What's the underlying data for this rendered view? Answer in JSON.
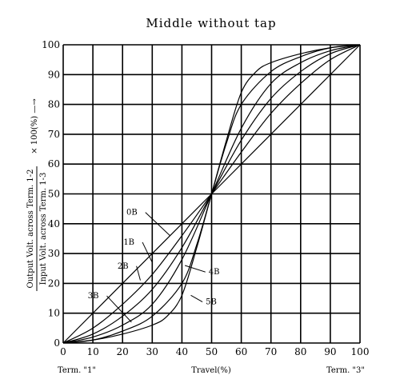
{
  "chart_data": {
    "type": "line",
    "title": "Middle without tap",
    "xlabel": "Travel(%)",
    "x_term_left": "Term. \"1\"",
    "x_term_right": "Term. \"3\"",
    "ylabel_line1": "Output Volt. across Term. 1-2",
    "ylabel_line2": "Input Volt. across Term. 1-3",
    "ylabel_suffix": "× 100(%) —→",
    "xlim": [
      0,
      100
    ],
    "ylim": [
      0,
      100
    ],
    "x_ticks": [
      0,
      10,
      20,
      30,
      40,
      50,
      60,
      70,
      80,
      90,
      100
    ],
    "y_ticks": [
      0,
      10,
      20,
      30,
      40,
      50,
      60,
      70,
      80,
      90,
      100
    ],
    "grid": true,
    "series": [
      {
        "name": "0B",
        "x": [
          0,
          50,
          100
        ],
        "y": [
          0,
          50,
          100
        ]
      },
      {
        "name": "1B",
        "x": [
          0,
          10,
          20,
          30,
          40,
          50,
          60,
          70,
          80,
          90,
          100
        ],
        "y": [
          0,
          5,
          13,
          23,
          36,
          50,
          64,
          77,
          87,
          95,
          100
        ]
      },
      {
        "name": "2B",
        "x": [
          0,
          10,
          20,
          30,
          40,
          50,
          60,
          70,
          80,
          90,
          100
        ],
        "y": [
          0,
          3,
          9,
          18,
          32,
          50,
          68,
          82,
          91,
          97,
          100
        ]
      },
      {
        "name": "3B",
        "x": [
          0,
          10,
          20,
          30,
          40,
          50,
          60,
          70,
          80,
          90,
          100
        ],
        "y": [
          0,
          2,
          6,
          13,
          28,
          50,
          72,
          87,
          94,
          98,
          100
        ]
      },
      {
        "name": "4B",
        "x": [
          0,
          10,
          20,
          30,
          40,
          45,
          50,
          55,
          60,
          70,
          80,
          90,
          100
        ],
        "y": [
          0,
          1,
          4,
          9,
          20,
          33,
          50,
          67,
          80,
          91,
          96,
          99,
          100
        ]
      },
      {
        "name": "5B",
        "x": [
          0,
          10,
          20,
          30,
          35,
          40,
          45,
          50,
          55,
          60,
          65,
          70,
          80,
          90,
          100
        ],
        "y": [
          0,
          1,
          3,
          6,
          9,
          16,
          32,
          50,
          68,
          84,
          91,
          94,
          97,
          99,
          100
        ]
      }
    ],
    "annotations": [
      "0B",
      "1B",
      "2B",
      "3B",
      "4B",
      "5B"
    ]
  }
}
